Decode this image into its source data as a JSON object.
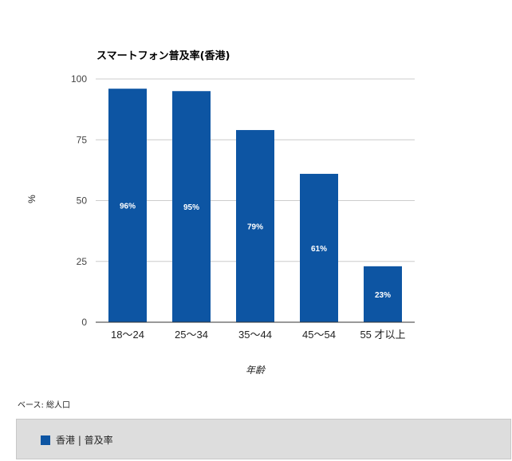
{
  "chart_data": {
    "type": "bar",
    "title": "スマートフォン普及率(香港)",
    "xlabel": "年齢",
    "ylabel": "%",
    "categories": [
      "18～24",
      "25～34",
      "35～44",
      "45～54",
      "55 才以上"
    ],
    "series": [
      {
        "name": "香港 | 普及率",
        "values": [
          96,
          95,
          79,
          61,
          23
        ],
        "data_labels": [
          "96%",
          "95%",
          "79%",
          "61%",
          "23%"
        ],
        "color": "#0d55a3"
      }
    ],
    "ylim": [
      0,
      100
    ],
    "yticks": [
      "0",
      "25",
      "50",
      "75",
      "100"
    ],
    "grid": true,
    "legend": "bottom"
  },
  "base_note": "ベース: 総人口"
}
